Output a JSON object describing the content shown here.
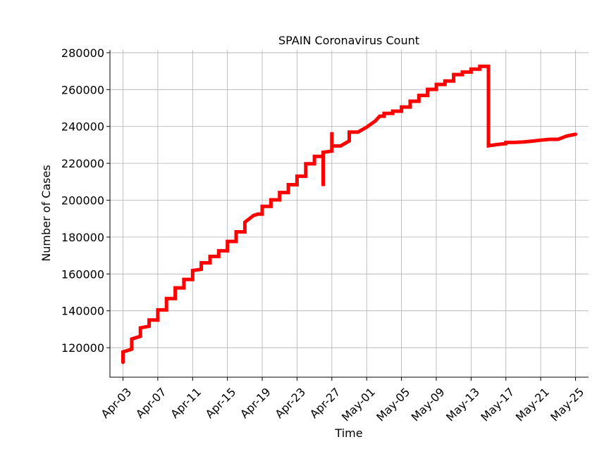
{
  "chart_data": {
    "type": "line",
    "title": "SPAIN Coronavirus Count",
    "xlabel": "Time",
    "ylabel": "Number of Cases",
    "x_ticks": [
      "Apr-03",
      "Apr-07",
      "Apr-11",
      "Apr-15",
      "Apr-19",
      "Apr-23",
      "Apr-27",
      "May-01",
      "May-05",
      "May-09",
      "May-13",
      "May-17",
      "May-21",
      "May-25"
    ],
    "y_ticks": [
      120000,
      140000,
      160000,
      180000,
      200000,
      220000,
      240000,
      260000,
      280000
    ],
    "x_range": [
      "2020-04-01T12:00",
      "2020-05-26T12:00"
    ],
    "ylim": [
      104000,
      281500
    ],
    "grid": true,
    "color": "#ff0000",
    "series": [
      {
        "points": [
          [
            "2020-04-03T00:00",
            112065
          ],
          [
            "2020-04-03T00:00",
            117710
          ],
          [
            "2020-04-04T00:00",
            119199
          ],
          [
            "2020-04-04T00:00",
            124736
          ],
          [
            "2020-04-05T00:00",
            126168
          ],
          [
            "2020-04-05T00:00",
            130759
          ],
          [
            "2020-04-06T00:00",
            131646
          ],
          [
            "2020-04-06T00:00",
            135032
          ],
          [
            "2020-04-07T00:00",
            135032
          ],
          [
            "2020-04-07T00:00",
            140510
          ],
          [
            "2020-04-08T00:00",
            140510
          ],
          [
            "2020-04-08T00:00",
            146690
          ],
          [
            "2020-04-09T00:00",
            146690
          ],
          [
            "2020-04-09T00:00",
            152446
          ],
          [
            "2020-04-10T00:00",
            152446
          ],
          [
            "2020-04-10T00:00",
            157022
          ],
          [
            "2020-04-11T00:00",
            157022
          ],
          [
            "2020-04-11T00:00",
            161852
          ],
          [
            "2020-04-12T00:00",
            162500
          ],
          [
            "2020-04-12T00:00",
            166019
          ],
          [
            "2020-04-13T00:00",
            166019
          ],
          [
            "2020-04-13T00:00",
            169496
          ],
          [
            "2020-04-14T00:00",
            169496
          ],
          [
            "2020-04-14T00:00",
            172541
          ],
          [
            "2020-04-15T00:00",
            172541
          ],
          [
            "2020-04-15T00:00",
            177644
          ],
          [
            "2020-04-16T00:00",
            177644
          ],
          [
            "2020-04-16T00:00",
            182816
          ],
          [
            "2020-04-17T00:00",
            182816
          ],
          [
            "2020-04-17T00:00",
            188068
          ],
          [
            "2020-04-18T00:00",
            191726
          ],
          [
            "2020-04-18T12:00",
            192500
          ],
          [
            "2020-04-19T00:00",
            192500
          ],
          [
            "2020-04-19T00:00",
            196664
          ],
          [
            "2020-04-20T00:00",
            196664
          ],
          [
            "2020-04-20T00:00",
            200210
          ],
          [
            "2020-04-21T00:00",
            200210
          ],
          [
            "2020-04-21T00:00",
            204178
          ],
          [
            "2020-04-22T00:00",
            204178
          ],
          [
            "2020-04-22T00:00",
            208389
          ],
          [
            "2020-04-23T00:00",
            208389
          ],
          [
            "2020-04-23T00:00",
            213024
          ],
          [
            "2020-04-24T00:00",
            213024
          ],
          [
            "2020-04-24T00:00",
            219764
          ],
          [
            "2020-04-25T00:00",
            219764
          ],
          [
            "2020-04-25T00:00",
            223759
          ],
          [
            "2020-04-26T00:00",
            223759
          ],
          [
            "2020-04-26T00:00",
            207634
          ],
          [
            "2020-04-26T00:00",
            226000
          ],
          [
            "2020-04-27T00:00",
            226629
          ],
          [
            "2020-04-27T00:00",
            236899
          ],
          [
            "2020-04-27T00:00",
            229422
          ],
          [
            "2020-04-28T00:00",
            229422
          ],
          [
            "2020-04-29T00:00",
            232128
          ],
          [
            "2020-04-29T00:00",
            236899
          ],
          [
            "2020-04-30T00:00",
            236899
          ],
          [
            "2020-05-01T00:00",
            239639
          ],
          [
            "2020-05-02T00:00",
            242988
          ],
          [
            "2020-05-02T12:00",
            245567
          ],
          [
            "2020-05-03T00:00",
            245567
          ],
          [
            "2020-05-03T00:00",
            247122
          ],
          [
            "2020-05-04T00:00",
            247122
          ],
          [
            "2020-05-04T00:00",
            248301
          ],
          [
            "2020-05-05T00:00",
            248301
          ],
          [
            "2020-05-05T00:00",
            250561
          ],
          [
            "2020-05-06T00:00",
            250561
          ],
          [
            "2020-05-06T00:00",
            253682
          ],
          [
            "2020-05-07T00:00",
            253682
          ],
          [
            "2020-05-07T00:00",
            256855
          ],
          [
            "2020-05-08T00:00",
            256855
          ],
          [
            "2020-05-08T00:00",
            260117
          ],
          [
            "2020-05-09T00:00",
            260117
          ],
          [
            "2020-05-09T00:00",
            262783
          ],
          [
            "2020-05-10T00:00",
            262783
          ],
          [
            "2020-05-10T00:00",
            264663
          ],
          [
            "2020-05-11T00:00",
            264663
          ],
          [
            "2020-05-11T00:00",
            268143
          ],
          [
            "2020-05-12T00:00",
            268143
          ],
          [
            "2020-05-12T00:00",
            269520
          ],
          [
            "2020-05-13T00:00",
            269520
          ],
          [
            "2020-05-13T00:00",
            271095
          ],
          [
            "2020-05-14T00:00",
            271095
          ],
          [
            "2020-05-14T00:00",
            272646
          ],
          [
            "2020-05-15T00:00",
            272646
          ],
          [
            "2020-05-15T00:00",
            229540
          ],
          [
            "2020-05-16T00:00",
            230183
          ],
          [
            "2020-05-17T00:00",
            230698
          ],
          [
            "2020-05-17T00:00",
            231350
          ],
          [
            "2020-05-18T00:00",
            231350
          ],
          [
            "2020-05-19T00:00",
            231606
          ],
          [
            "2020-05-20T00:00",
            232037
          ],
          [
            "2020-05-21T00:00",
            232555
          ],
          [
            "2020-05-22T00:00",
            233037
          ],
          [
            "2020-05-23T00:00",
            233037
          ],
          [
            "2020-05-24T00:00",
            234824
          ],
          [
            "2020-05-24T12:00",
            235290
          ],
          [
            "2020-05-25T00:00",
            235772
          ]
        ]
      }
    ]
  }
}
